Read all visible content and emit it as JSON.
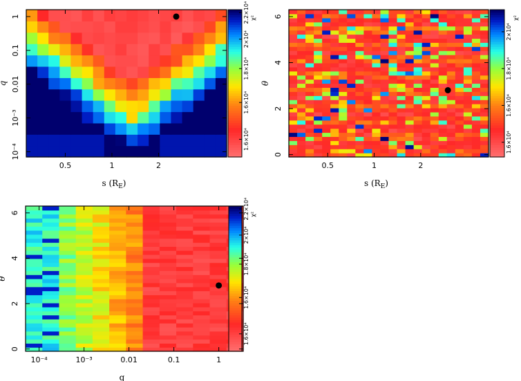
{
  "chart_data": [
    {
      "type": "heatmap",
      "panel": "top-left",
      "xlabel": "s (R",
      "xlabel_sub": "E",
      "xlabel_close": ")",
      "ylabel": "q",
      "x_scale": "log",
      "y_scale": "log",
      "x_range": [
        0.28,
        5.5
      ],
      "y_range": [
        7e-05,
        1.6
      ],
      "nx": 18,
      "ny": 13,
      "x_ticks": [
        {
          "v": 0.5,
          "label": "0.5"
        },
        {
          "v": 1,
          "label": "1"
        },
        {
          "v": 2,
          "label": "2"
        }
      ],
      "y_ticks": [
        {
          "v": 0.0001,
          "label": "10⁻⁴"
        },
        {
          "v": 0.001,
          "label": "10⁻³"
        },
        {
          "v": 0.01,
          "label": "0.01"
        },
        {
          "v": 0.1,
          "label": "0.1"
        },
        {
          "v": 1,
          "label": "1"
        }
      ],
      "colorbar": {
        "label": "χ²",
        "ticks": [
          {
            "v": 0.12,
            "label": "1.6×10⁴"
          },
          {
            "v": 0.37,
            "label": "1.6×10⁴"
          },
          {
            "v": 0.6,
            "label": "1.8×10⁴"
          },
          {
            "v": 0.8,
            "label": "2×10⁴"
          },
          {
            "v": 0.98,
            "label": "2.2×10⁴"
          }
        ]
      },
      "best_fit": {
        "x": 2.6,
        "y": 1.0
      },
      "grid": false
    },
    {
      "type": "heatmap",
      "panel": "top-right",
      "xlabel": "s (R",
      "xlabel_sub": "E",
      "xlabel_close": ")",
      "ylabel": "θ",
      "x_scale": "log",
      "y_scale": "linear",
      "x_range": [
        0.28,
        5.5
      ],
      "y_range": [
        -0.1,
        6.3
      ],
      "nx": 24,
      "ny": 36,
      "x_ticks": [
        {
          "v": 0.5,
          "label": "0.5"
        },
        {
          "v": 1,
          "label": "1"
        },
        {
          "v": 2,
          "label": "2"
        }
      ],
      "y_ticks": [
        {
          "v": 0,
          "label": "0"
        },
        {
          "v": 2,
          "label": "2"
        },
        {
          "v": 4,
          "label": "4"
        },
        {
          "v": 6,
          "label": "6"
        }
      ],
      "colorbar": {
        "label": "χ²",
        "ticks": [
          {
            "v": 0.1,
            "label": "1.6×10⁴"
          },
          {
            "v": 0.35,
            "label": "1.6×10⁴"
          },
          {
            "v": 0.6,
            "label": "1.8×10⁴"
          },
          {
            "v": 0.85,
            "label": "2×10⁴"
          }
        ]
      },
      "best_fit": {
        "x": 3.0,
        "y": 2.8
      },
      "grid": false
    },
    {
      "type": "heatmap",
      "panel": "bottom-left",
      "xlabel": "q",
      "ylabel": "θ",
      "x_scale": "log",
      "y_scale": "linear",
      "x_range": [
        5e-05,
        3.5
      ],
      "y_range": [
        -0.1,
        6.3
      ],
      "nx": 13,
      "ny": 36,
      "x_ticks": [
        {
          "v": 0.0001,
          "label": "10⁻⁴"
        },
        {
          "v": 0.001,
          "label": "10⁻³"
        },
        {
          "v": 0.01,
          "label": "0.01"
        },
        {
          "v": 0.1,
          "label": "0.1"
        },
        {
          "v": 1,
          "label": "1"
        }
      ],
      "y_ticks": [
        {
          "v": 0,
          "label": "0"
        },
        {
          "v": 2,
          "label": "2"
        },
        {
          "v": 4,
          "label": "4"
        },
        {
          "v": 6,
          "label": "6"
        }
      ],
      "colorbar": {
        "label": "χ²",
        "ticks": [
          {
            "v": 0.12,
            "label": "1.6×10⁴"
          },
          {
            "v": 0.37,
            "label": "1.6×10⁴"
          },
          {
            "v": 0.6,
            "label": "1.8×10⁴"
          },
          {
            "v": 0.8,
            "label": "2×10⁴"
          },
          {
            "v": 0.98,
            "label": "2.2×10⁴"
          }
        ]
      },
      "best_fit": {
        "x": 1.0,
        "y": 2.8
      },
      "grid": false
    }
  ]
}
